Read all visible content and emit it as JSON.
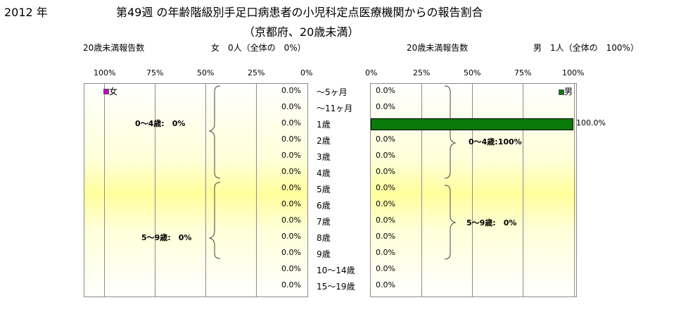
{
  "header": {
    "year": "2012 年",
    "title": "第49週 の年齢階級別手足口病患者の小児科定点医療機関からの報告割合",
    "subtitle": "（京都府、20歳未満）"
  },
  "female_panel": {
    "count_label": "20歳未満報告数",
    "summary": "女　0人（全体の　0%）",
    "legend": "女",
    "group_labels": [
      "0～4歳:　0%",
      "5～9歳:　0%"
    ],
    "value_labels": [
      "0.0%",
      "0.0%",
      "0.0%",
      "0.0%",
      "0.0%",
      "0.0%",
      "0.0%",
      "0.0%",
      "0.0%",
      "0.0%",
      "0.0%",
      "0.0%",
      "0.0%"
    ]
  },
  "male_panel": {
    "count_label": "20歳未満報告数",
    "summary": "男　1人（全体の　100%）",
    "legend": "男",
    "group_labels": [
      "0～4歳:100%",
      "5～9歳:　0%"
    ],
    "value_labels": [
      "0.0%",
      "0.0%",
      "100.0%",
      "0.0%",
      "0.0%",
      "0.0%",
      "0.0%",
      "0.0%",
      "0.0%",
      "0.0%",
      "0.0%",
      "0.0%",
      "0.0%"
    ]
  },
  "age_labels": [
    "～5ヶ月",
    "～11ヶ月",
    "1歳",
    "2歳",
    "3歳",
    "4歳",
    "5歳",
    "6歳",
    "7歳",
    "8歳",
    "9歳",
    "10～14歳",
    "15～19歳"
  ],
  "chart_data": [
    {
      "type": "bar",
      "orientation": "horizontal",
      "direction": "reversed",
      "series": [
        {
          "name": "女",
          "values": [
            0,
            0,
            0,
            0,
            0,
            0,
            0,
            0,
            0,
            0,
            0,
            0,
            0
          ]
        }
      ],
      "categories": [
        "～5ヶ月",
        "～11ヶ月",
        "1歳",
        "2歳",
        "3歳",
        "4歳",
        "5歳",
        "6歳",
        "7歳",
        "8歳",
        "9歳",
        "10～14歳",
        "15～19歳"
      ],
      "xlim": [
        0,
        100
      ],
      "x_ticks": [
        "100%",
        "75%",
        "50%",
        "25%",
        "0%"
      ],
      "color": "#cc00cc"
    },
    {
      "type": "bar",
      "orientation": "horizontal",
      "series": [
        {
          "name": "男",
          "values": [
            0,
            0,
            100,
            0,
            0,
            0,
            0,
            0,
            0,
            0,
            0,
            0,
            0
          ]
        }
      ],
      "categories": [
        "～5ヶ月",
        "～11ヶ月",
        "1歳",
        "2歳",
        "3歳",
        "4歳",
        "5歳",
        "6歳",
        "7歳",
        "8歳",
        "9歳",
        "10～14歳",
        "15～19歳"
      ],
      "xlim": [
        0,
        100
      ],
      "x_ticks": [
        "0%",
        "25%",
        "50%",
        "75%",
        "100%"
      ],
      "color": "#0a7a0a"
    }
  ]
}
